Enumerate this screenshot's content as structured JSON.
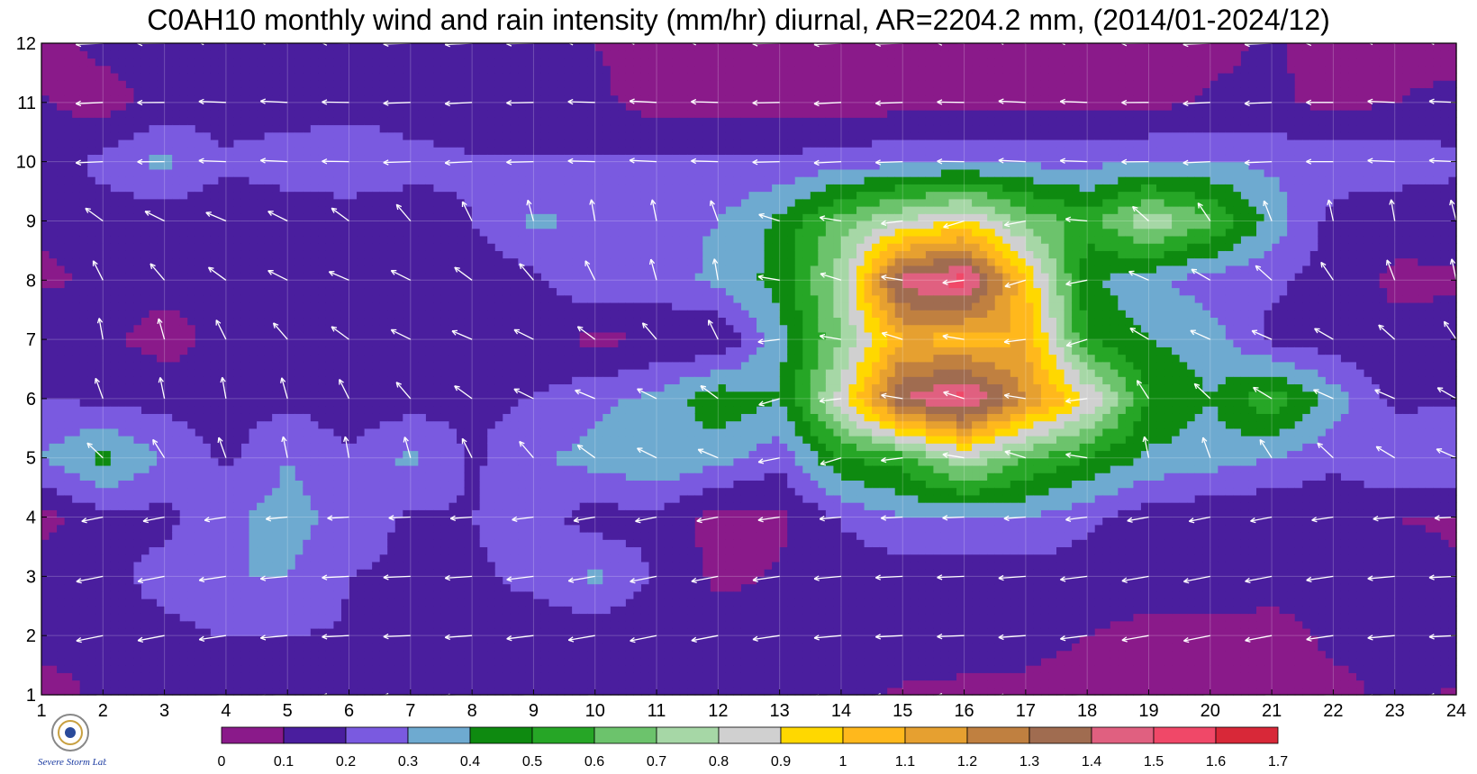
{
  "title": "C0AH10 monthly wind and rain intensity (mm/hr) diurnal, AR=2204.2 mm, (2014/01-2024/12)",
  "logo": {
    "icon": "severe-storm-lab-logo",
    "text": "Severe Storm Lab."
  },
  "chart_data": {
    "type": "heatmap",
    "subtype": "filled contour with wind vectors",
    "title": "C0AH10 monthly wind and rain intensity (mm/hr) diurnal, AR=2204.2 mm, (2014/01-2024/12)",
    "xlabel": "",
    "ylabel": "",
    "x_ticks": [
      "1",
      "2",
      "3",
      "4",
      "5",
      "6",
      "7",
      "8",
      "9",
      "10",
      "11",
      "12",
      "13",
      "14",
      "15",
      "16",
      "17",
      "18",
      "19",
      "20",
      "21",
      "22",
      "23",
      "24"
    ],
    "y_ticks": [
      "1",
      "2",
      "3",
      "4",
      "5",
      "6",
      "7",
      "8",
      "9",
      "10",
      "11",
      "12"
    ],
    "xlim": [
      1,
      24
    ],
    "ylim": [
      1,
      12
    ],
    "grid": true,
    "colorbar": {
      "levels": [
        "0",
        "0.1",
        "0.2",
        "0.3",
        "0.4",
        "0.5",
        "0.6",
        "0.7",
        "0.8",
        "0.9",
        "1",
        "1.1",
        "1.2",
        "1.3",
        "1.4",
        "1.5",
        "1.6",
        "1.7"
      ],
      "colors": [
        "#8a1a8a",
        "#4a1e9e",
        "#7a5ae0",
        "#6eaad0",
        "#0e8a10",
        "#26a626",
        "#6cc36c",
        "#a6d7a6",
        "#d0d0d0",
        "#ffd800",
        "#ffb81c",
        "#e6a030",
        "#c08040",
        "#a06c50",
        "#e06080",
        "#f04868",
        "#d82838"
      ]
    },
    "grid_values": [
      [
        0.05,
        0.12,
        0.14,
        0.14,
        0.14,
        0.14,
        0.14,
        0.14,
        0.14,
        0.14,
        0.15,
        0.15,
        0.15,
        0.12,
        0.09,
        0.08,
        0.07,
        0.05,
        0.05,
        0.05,
        0.05,
        0.07,
        0.12,
        0.09
      ],
      [
        0.14,
        0.14,
        0.17,
        0.2,
        0.2,
        0.19,
        0.2,
        0.16,
        0.13,
        0.14,
        0.14,
        0.14,
        0.14,
        0.14,
        0.14,
        0.14,
        0.14,
        0.1,
        0.06,
        0.05,
        0.06,
        0.12,
        0.14,
        0.14
      ],
      [
        0.15,
        0.17,
        0.24,
        0.3,
        0.3,
        0.2,
        0.18,
        0.18,
        0.23,
        0.32,
        0.18,
        0.08,
        0.11,
        0.14,
        0.14,
        0.14,
        0.15,
        0.15,
        0.17,
        0.2,
        0.14,
        0.14,
        0.13,
        0.11
      ],
      [
        0.06,
        0.17,
        0.17,
        0.28,
        0.34,
        0.26,
        0.18,
        0.2,
        0.25,
        0.15,
        0.18,
        0.05,
        0.08,
        0.21,
        0.3,
        0.3,
        0.31,
        0.22,
        0.15,
        0.12,
        0.11,
        0.14,
        0.1,
        0.09
      ],
      [
        0.3,
        0.43,
        0.3,
        0.18,
        0.3,
        0.21,
        0.33,
        0.18,
        0.28,
        0.34,
        0.39,
        0.34,
        0.23,
        0.5,
        0.55,
        0.8,
        0.6,
        0.5,
        0.38,
        0.35,
        0.3,
        0.22,
        0.3,
        0.29
      ],
      [
        0.2,
        0.18,
        0.16,
        0.15,
        0.18,
        0.14,
        0.15,
        0.18,
        0.2,
        0.27,
        0.33,
        0.47,
        0.4,
        0.85,
        1.4,
        1.55,
        1.2,
        0.9,
        0.5,
        0.4,
        0.58,
        0.35,
        0.17,
        0.19
      ],
      [
        0.2,
        0.12,
        0.06,
        0.13,
        0.15,
        0.19,
        0.12,
        0.14,
        0.15,
        0.07,
        0.11,
        0.1,
        0.36,
        0.7,
        1.1,
        1.05,
        1.1,
        0.5,
        0.4,
        0.35,
        0.17,
        0.14,
        0.13,
        0.13
      ],
      [
        0.08,
        0.12,
        0.14,
        0.11,
        0.12,
        0.13,
        0.12,
        0.13,
        0.17,
        0.3,
        0.26,
        0.32,
        0.44,
        0.76,
        1.45,
        1.55,
        1.0,
        0.42,
        0.32,
        0.25,
        0.22,
        0.16,
        0.08,
        0.09
      ],
      [
        0.12,
        0.13,
        0.13,
        0.12,
        0.13,
        0.12,
        0.14,
        0.2,
        0.32,
        0.28,
        0.28,
        0.3,
        0.42,
        0.65,
        0.8,
        0.92,
        0.68,
        0.55,
        0.78,
        0.62,
        0.36,
        0.16,
        0.14,
        0.13
      ],
      [
        0.12,
        0.24,
        0.33,
        0.22,
        0.26,
        0.31,
        0.24,
        0.21,
        0.21,
        0.21,
        0.22,
        0.21,
        0.22,
        0.25,
        0.28,
        0.3,
        0.28,
        0.27,
        0.3,
        0.3,
        0.28,
        0.26,
        0.25,
        0.23
      ],
      [
        0.11,
        0.05,
        0.14,
        0.14,
        0.14,
        0.14,
        0.14,
        0.14,
        0.14,
        0.12,
        0.06,
        0.06,
        0.06,
        0.06,
        0.06,
        0.07,
        0.07,
        0.07,
        0.07,
        0.11,
        0.12,
        0.07,
        0.1,
        0.13
      ],
      [
        0.05,
        0.13,
        0.14,
        0.14,
        0.14,
        0.14,
        0.14,
        0.14,
        0.13,
        0.1,
        0.07,
        0.06,
        0.06,
        0.06,
        0.06,
        0.06,
        0.06,
        0.06,
        0.06,
        0.08,
        0.11,
        0.06,
        0.06,
        0.06
      ]
    ],
    "wind_vectors": "white arrows at each hour/month grid point, mostly pointing west to north-west"
  }
}
